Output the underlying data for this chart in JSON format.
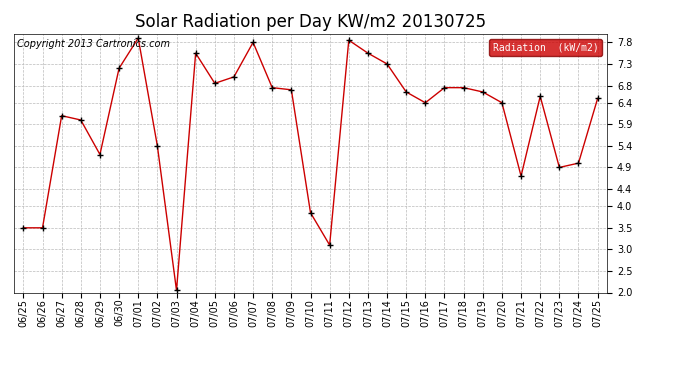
{
  "title": "Solar Radiation per Day KW/m2 20130725",
  "copyright": "Copyright 2013 Cartronics.com",
  "legend_label": "Radiation  (kW/m2)",
  "dates": [
    "06/25",
    "06/26",
    "06/27",
    "06/28",
    "06/29",
    "06/30",
    "07/01",
    "07/02",
    "07/03",
    "07/04",
    "07/05",
    "07/06",
    "07/07",
    "07/08",
    "07/09",
    "07/10",
    "07/11",
    "07/12",
    "07/13",
    "07/14",
    "07/15",
    "07/16",
    "07/17",
    "07/18",
    "07/19",
    "07/20",
    "07/21",
    "07/22",
    "07/23",
    "07/24",
    "07/25"
  ],
  "values": [
    3.5,
    3.5,
    6.1,
    6.0,
    5.2,
    7.2,
    7.9,
    5.4,
    2.05,
    7.55,
    6.85,
    7.0,
    7.8,
    6.75,
    6.7,
    3.85,
    3.1,
    7.85,
    7.55,
    7.3,
    6.65,
    6.4,
    6.75,
    6.75,
    6.65,
    6.4,
    4.7,
    6.55,
    4.9,
    5.0,
    6.5
  ],
  "ylim_min": 2.0,
  "ylim_max": 8.0,
  "yticks": [
    2.0,
    2.5,
    3.0,
    3.5,
    4.0,
    4.4,
    4.9,
    5.4,
    5.9,
    6.4,
    6.8,
    7.3,
    7.8
  ],
  "line_color": "#cc0000",
  "marker_color": "#000000",
  "bg_color": "#ffffff",
  "plot_bg_color": "#ffffff",
  "grid_color": "#bbbbbb",
  "title_fontsize": 12,
  "tick_fontsize": 7,
  "copyright_fontsize": 7,
  "legend_bg_color": "#cc0000",
  "legend_text_color": "#ffffff",
  "legend_fontsize": 7
}
